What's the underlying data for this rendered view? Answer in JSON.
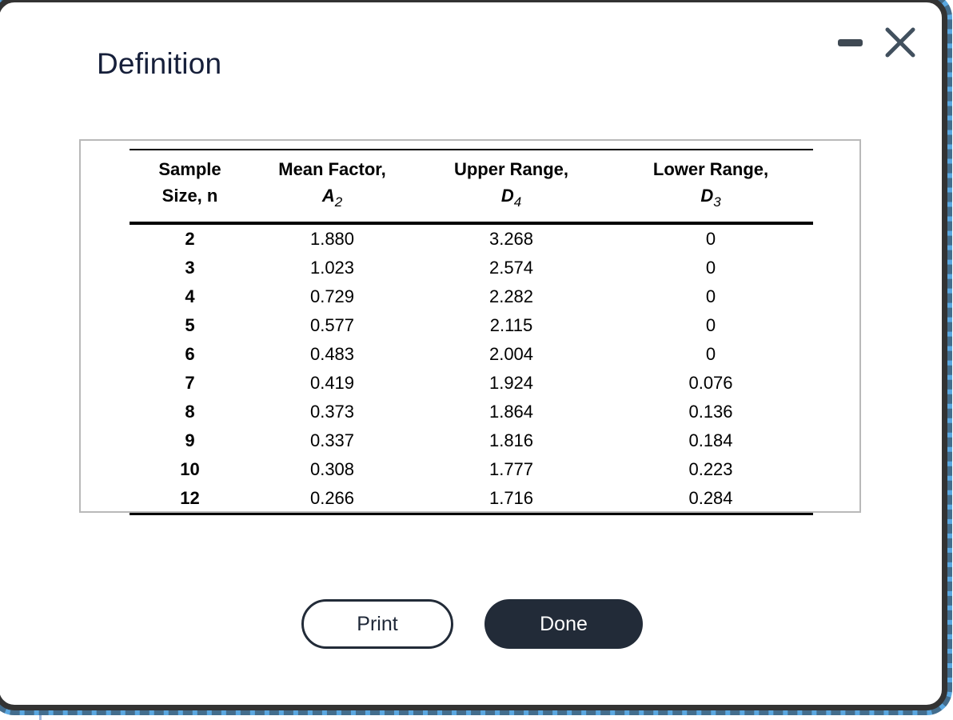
{
  "window": {
    "title": "Definition"
  },
  "table": {
    "column_keys": [
      "sample-size",
      "mean-factor",
      "upper-range",
      "lower-range"
    ],
    "columns": [
      {
        "line1": "Sample",
        "line2": "Size, n",
        "symbol": "",
        "subscript": ""
      },
      {
        "line1": "Mean Factor,",
        "symbol": "A",
        "subscript": "2"
      },
      {
        "line1": "Upper Range,",
        "symbol": "D",
        "subscript": "4"
      },
      {
        "line1": "Lower Range,",
        "symbol": "D",
        "subscript": "3"
      }
    ],
    "rows": [
      [
        "2",
        "1.880",
        "3.268",
        "0"
      ],
      [
        "3",
        "1.023",
        "2.574",
        "0"
      ],
      [
        "4",
        "0.729",
        "2.282",
        "0"
      ],
      [
        "5",
        "0.577",
        "2.115",
        "0"
      ],
      [
        "6",
        "0.483",
        "2.004",
        "0"
      ],
      [
        "7",
        "0.419",
        "1.924",
        "0.076"
      ],
      [
        "8",
        "0.373",
        "1.864",
        "0.136"
      ],
      [
        "9",
        "0.337",
        "1.816",
        "0.184"
      ],
      [
        "10",
        "0.308",
        "1.777",
        "0.223"
      ],
      [
        "12",
        "0.266",
        "1.716",
        "0.284"
      ]
    ]
  },
  "buttons": {
    "print": "Print",
    "done": "Done"
  },
  "colors": {
    "accent_focus_ring": "#5aa7e0",
    "window_border": "#333333",
    "title_text": "#161f3a",
    "button_dark": "#222b38",
    "table_card_border": "#b9b9b9",
    "control_icon": "#3f4953"
  }
}
